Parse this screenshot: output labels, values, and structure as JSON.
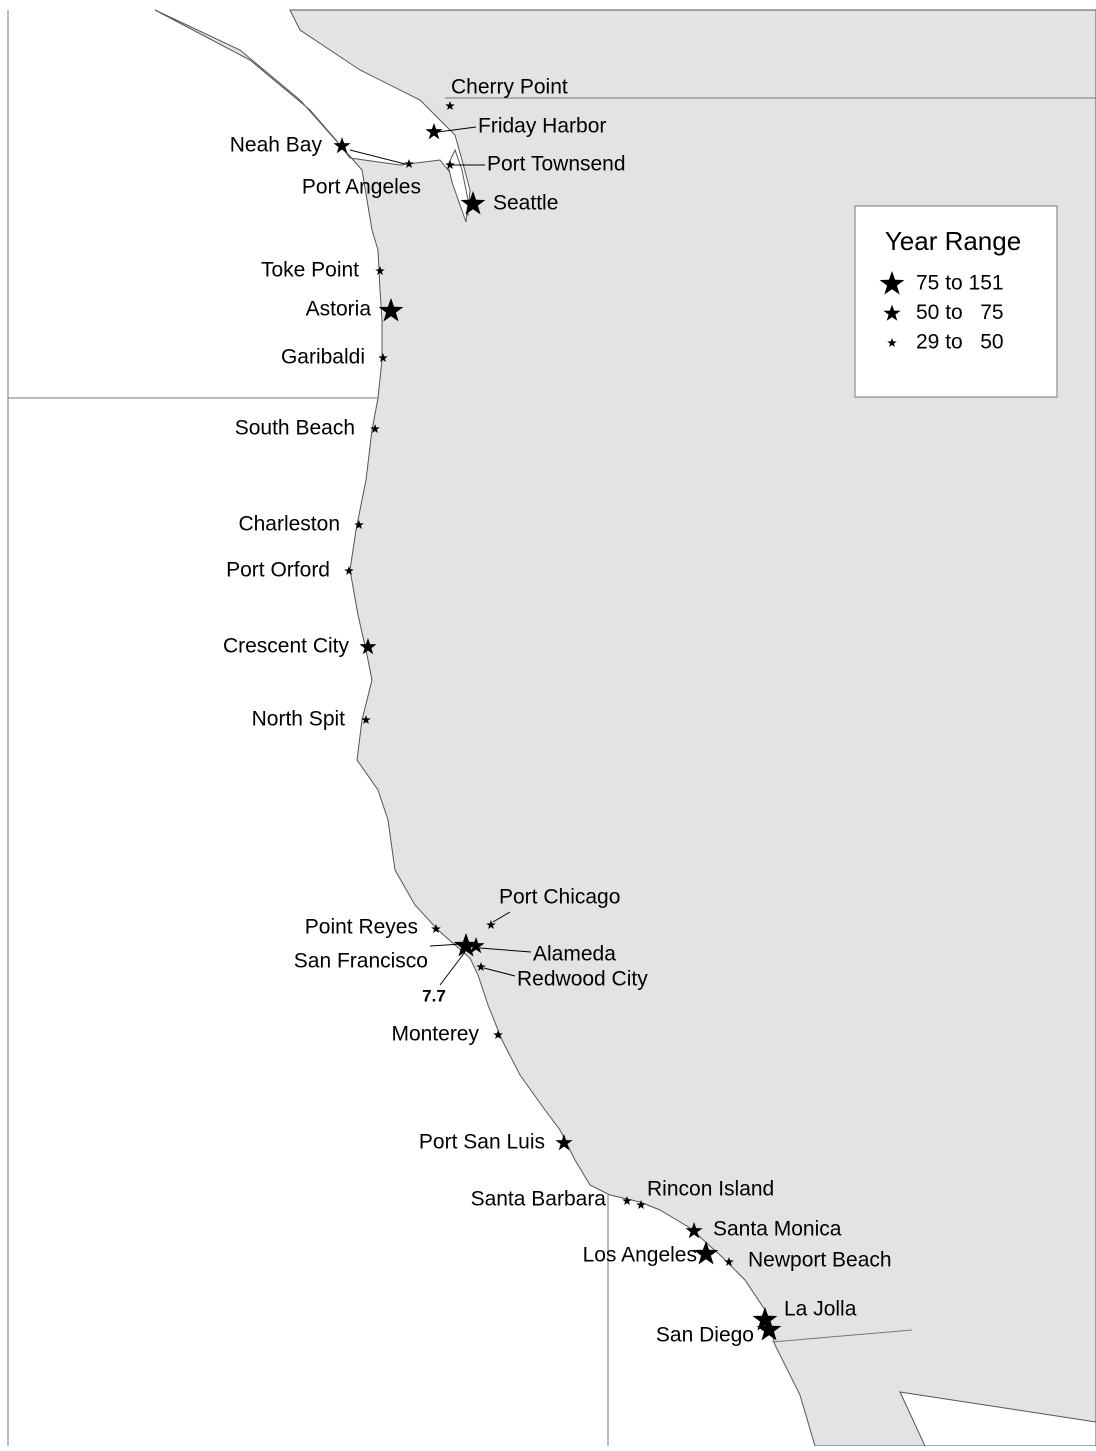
{
  "legend": {
    "title": "Year Range",
    "items": [
      {
        "label": "75 to 151"
      },
      {
        "label": "50 to   75"
      },
      {
        "label": "29 to   50"
      }
    ]
  },
  "stations": [
    "Cherry Point",
    "Friday Harbor",
    "Neah Bay",
    "Port Townsend",
    "Port Angeles",
    "Seattle",
    "Toke Point",
    "Astoria",
    "Garibaldi",
    "South Beach",
    "Charleston",
    "Port Orford",
    "Crescent City",
    "North Spit",
    "Port Chicago",
    "Point Reyes",
    "San Francisco",
    "Alameda",
    "Redwood City",
    "Monterey",
    "Port San Luis",
    "Santa Barbara",
    "Rincon Island",
    "Santa Monica",
    "Los Angeles",
    "Newport Beach",
    "La Jolla",
    "San Diego"
  ],
  "annotation": "7.7"
}
